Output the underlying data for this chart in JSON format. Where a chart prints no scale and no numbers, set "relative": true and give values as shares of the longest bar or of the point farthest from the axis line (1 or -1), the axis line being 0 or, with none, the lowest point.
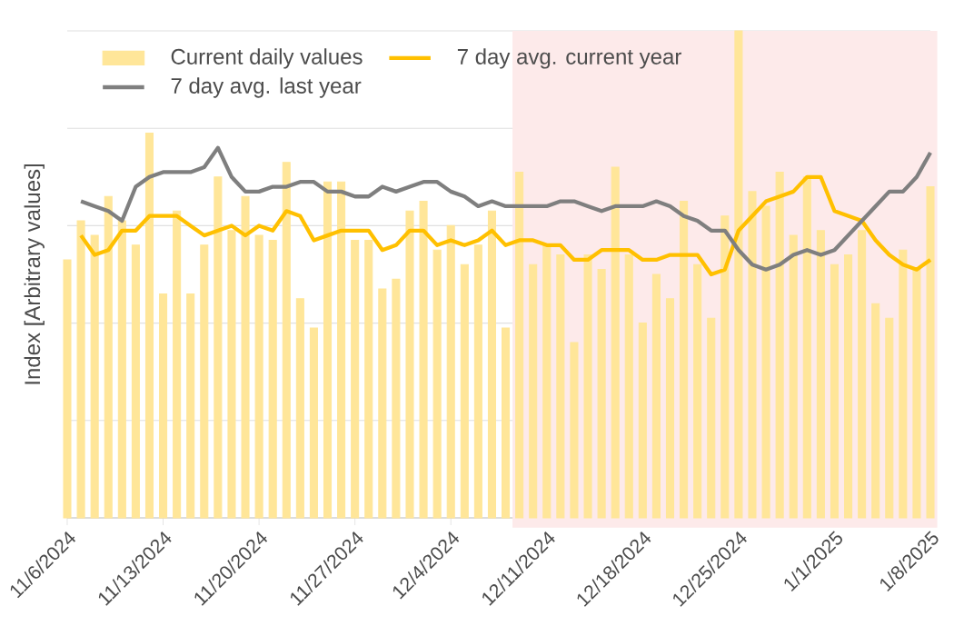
{
  "chart_data": {
    "type": "bar",
    "relative": true,
    "ylabel": "Index [Arbitrary values]",
    "grid": "y",
    "legend": "top",
    "x": [
      "2024-11-06",
      "2024-11-07",
      "2024-11-08",
      "2024-11-09",
      "2024-11-10",
      "2024-11-11",
      "2024-11-12",
      "2024-11-13",
      "2024-11-14",
      "2024-11-15",
      "2024-11-16",
      "2024-11-17",
      "2024-11-18",
      "2024-11-19",
      "2024-11-20",
      "2024-11-21",
      "2024-11-22",
      "2024-11-23",
      "2024-11-24",
      "2024-11-25",
      "2024-11-26",
      "2024-11-27",
      "2024-11-28",
      "2024-11-29",
      "2024-11-30",
      "2024-12-01",
      "2024-12-02",
      "2024-12-03",
      "2024-12-04",
      "2024-12-05",
      "2024-12-06",
      "2024-12-07",
      "2024-12-08",
      "2024-12-09",
      "2024-12-10",
      "2024-12-11",
      "2024-12-12",
      "2024-12-13",
      "2024-12-14",
      "2024-12-15",
      "2024-12-16",
      "2024-12-17",
      "2024-12-18",
      "2024-12-19",
      "2024-12-20",
      "2024-12-21",
      "2024-12-22",
      "2024-12-23",
      "2024-12-24",
      "2024-12-25",
      "2024-12-26",
      "2024-12-27",
      "2024-12-28",
      "2024-12-29",
      "2024-12-30",
      "2024-12-31",
      "2025-01-01",
      "2025-01-02",
      "2025-01-03",
      "2025-01-04",
      "2025-01-05",
      "2025-01-06",
      "2025-01-07",
      "2025-01-08"
    ],
    "xlim": [
      "2024-11-06",
      "2025-01-08"
    ],
    "xticks": [
      {
        "value": "2024-11-06",
        "label": "11/6/2024"
      },
      {
        "value": "2024-11-13",
        "label": "11/13/2024"
      },
      {
        "value": "2024-11-20",
        "label": "11/20/2024"
      },
      {
        "value": "2024-11-27",
        "label": "11/27/2024"
      },
      {
        "value": "2024-12-04",
        "label": "12/4/2024"
      },
      {
        "value": "2024-12-11",
        "label": "12/11/2024"
      },
      {
        "value": "2024-12-18",
        "label": "12/18/2024"
      },
      {
        "value": "2024-12-25",
        "label": "12/25/2024"
      },
      {
        "value": "2025-01-01",
        "label": "1/1/2025"
      },
      {
        "value": "2025-01-08",
        "label": "1/8/2025"
      }
    ],
    "bands": [
      {
        "axis": "x",
        "from": "2024-12-08T12:00",
        "to": "2025-01-08T12:00",
        "color": "#fdeaea"
      }
    ],
    "series": [
      {
        "name": "Current daily values",
        "color": "#ffe699",
        "values": [
          0.53,
          0.61,
          0.58,
          0.66,
          0.61,
          0.56,
          0.79,
          0.46,
          0.63,
          0.46,
          0.56,
          0.7,
          0.59,
          0.66,
          0.58,
          0.57,
          0.73,
          0.45,
          0.39,
          0.69,
          0.69,
          0.57,
          0.57,
          0.47,
          0.49,
          0.63,
          0.65,
          0.55,
          0.6,
          0.52,
          0.56,
          0.63,
          0.39,
          0.71,
          0.52,
          0.56,
          0.54,
          0.36,
          0.54,
          0.51,
          0.72,
          0.54,
          0.4,
          0.5,
          0.45,
          0.65,
          0.52,
          0.41,
          0.62,
          1,
          0.67,
          0.64,
          0.71,
          0.58,
          0.7,
          0.59,
          0.52,
          0.54,
          0.59,
          0.44,
          0.41,
          0.55,
          0.51,
          0.68
        ]
      },
      {
        "name": "7 day avg. current year",
        "type": "line",
        "color": "#ffc000",
        "values": [
          null,
          0.58,
          0.54,
          0.55,
          0.59,
          0.59,
          0.62,
          0.62,
          0.62,
          0.6,
          0.58,
          0.59,
          0.6,
          0.58,
          0.6,
          0.59,
          0.63,
          0.62,
          0.57,
          0.58,
          0.59,
          0.59,
          0.59,
          0.55,
          0.56,
          0.59,
          0.59,
          0.56,
          0.57,
          0.56,
          0.57,
          0.59,
          0.56,
          0.57,
          0.57,
          0.56,
          0.56,
          0.53,
          0.53,
          0.55,
          0.55,
          0.55,
          0.53,
          0.53,
          0.54,
          0.54,
          0.54,
          0.5,
          0.51,
          0.59,
          0.62,
          0.65,
          0.66,
          0.67,
          0.7,
          0.7,
          0.63,
          0.62,
          0.61,
          0.57,
          0.54,
          0.52,
          0.51,
          0.53
        ]
      },
      {
        "name": "7 day avg. last year",
        "type": "line",
        "color": "#7f7f7f",
        "values": [
          null,
          0.65,
          0.64,
          0.63,
          0.61,
          0.68,
          0.7,
          0.71,
          0.71,
          0.71,
          0.72,
          0.76,
          0.7,
          0.67,
          0.67,
          0.68,
          0.68,
          0.69,
          0.69,
          0.67,
          0.67,
          0.66,
          0.66,
          0.68,
          0.67,
          0.68,
          0.69,
          0.69,
          0.67,
          0.66,
          0.64,
          0.65,
          0.64,
          0.64,
          0.64,
          0.64,
          0.65,
          0.65,
          0.64,
          0.63,
          0.64,
          0.64,
          0.64,
          0.65,
          0.64,
          0.62,
          0.61,
          0.59,
          0.59,
          0.55,
          0.52,
          0.51,
          0.52,
          0.54,
          0.55,
          0.54,
          0.55,
          0.58,
          0.61,
          0.64,
          0.67,
          0.67,
          0.7,
          0.75
        ]
      }
    ]
  }
}
